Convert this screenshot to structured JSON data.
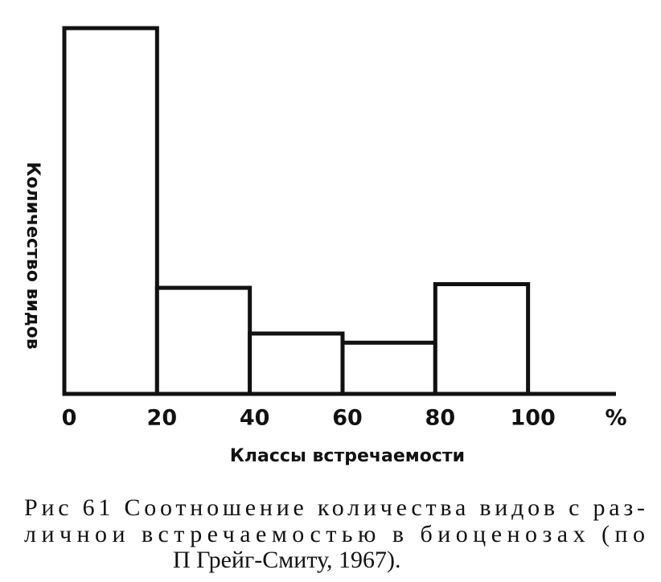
{
  "chart_data": {
    "type": "histogram",
    "bins": [
      0,
      20,
      40,
      60,
      80,
      100
    ],
    "values": [
      100,
      29,
      16.5,
      14,
      30
    ],
    "xlim": [
      0,
      120
    ],
    "ylim": [
      0,
      100
    ],
    "xticks": [
      0,
      20,
      40,
      60,
      80,
      100
    ],
    "x_unit": "%",
    "xlabel": "Классы встречаемости",
    "ylabel": "Количество видов",
    "color": "#111111",
    "caption": [
      "Рис 61  Соотношение количества видов с раз-",
      "личнои  встречаемостью  в  биоценозах  (по",
      "П  Грейг-Смиту, 1967)."
    ]
  }
}
